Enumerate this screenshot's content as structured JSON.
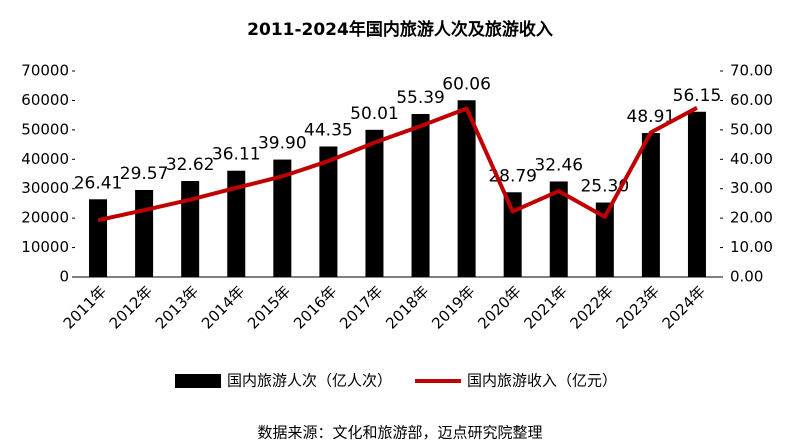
{
  "chart_data": {
    "type": "bar-line",
    "title": "2011-2024年国内旅游人次及旅游收入",
    "source": "数据来源：文化和旅游部，迈点研究院整理",
    "categories": [
      "2011年",
      "2012年",
      "2013年",
      "2014年",
      "2015年",
      "2016年",
      "2017年",
      "2018年",
      "2019年",
      "2020年",
      "2021年",
      "2022年",
      "2023年",
      "2024年"
    ],
    "series": [
      {
        "name": "国内旅游人次（亿人次）",
        "color": "#000000",
        "kind": "bar",
        "values": [
          26410,
          29570,
          32620,
          36110,
          39900,
          44350,
          50010,
          55390,
          60060,
          28790,
          32460,
          25300,
          48910,
          56150
        ],
        "value_labels": [
          "26.41",
          "29.57",
          "32.62",
          "36.11",
          "39.90",
          "44.35",
          "50.01",
          "55.39",
          "60.06",
          "28.79",
          "32.46",
          "25.30",
          "48.91",
          "56.15"
        ]
      },
      {
        "name": "国内旅游收入（亿元）",
        "color": "#c00000",
        "kind": "line",
        "axis": "y2",
        "values": [
          19.31,
          22.71,
          26.28,
          30.31,
          34.2,
          39.39,
          45.66,
          51.28,
          57.25,
          22.29,
          29.19,
          20.44,
          49.13,
          57.5
        ]
      }
    ],
    "ylim": [
      0,
      70000
    ],
    "yticks": [
      0,
      10000,
      20000,
      30000,
      40000,
      50000,
      60000,
      70000
    ],
    "y2lim": [
      0,
      70
    ],
    "y2ticks": [
      {
        "value": 0,
        "label": "0.00"
      },
      {
        "value": 10,
        "label": "10.00"
      },
      {
        "value": 20,
        "label": "20.00"
      },
      {
        "value": 30,
        "label": "30.00"
      },
      {
        "value": 40,
        "label": "40.00"
      },
      {
        "value": 50,
        "label": "50.00"
      },
      {
        "value": 60,
        "label": "60.00"
      },
      {
        "value": 70,
        "label": "70.00"
      }
    ],
    "legend": "bottom"
  }
}
